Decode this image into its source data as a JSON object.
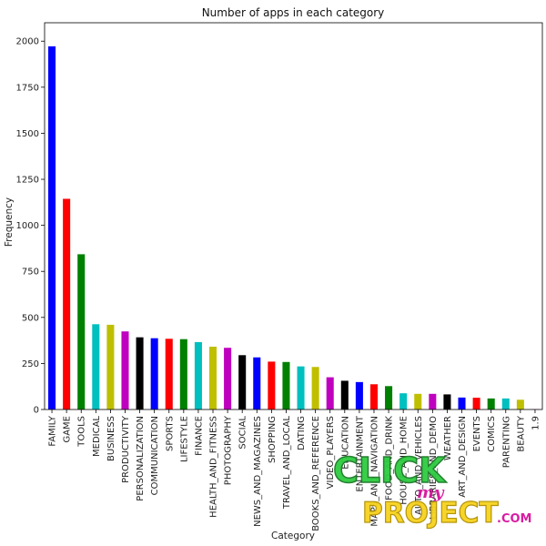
{
  "chart_data": {
    "type": "bar",
    "title": "Number of apps in each category",
    "xlabel": "Category",
    "ylabel": "Frequency",
    "ylim": [
      0,
      2100
    ],
    "yticks": [
      0,
      250,
      500,
      750,
      1000,
      1250,
      1500,
      1750,
      2000
    ],
    "grid": false,
    "legend": "none",
    "categories": [
      "FAMILY",
      "GAME",
      "TOOLS",
      "MEDICAL",
      "BUSINESS",
      "PRODUCTIVITY",
      "PERSONALIZATION",
      "COMMUNICATION",
      "SPORTS",
      "LIFESTYLE",
      "FINANCE",
      "HEALTH_AND_FITNESS",
      "PHOTOGRAPHY",
      "SOCIAL",
      "NEWS_AND_MAGAZINES",
      "SHOPPING",
      "TRAVEL_AND_LOCAL",
      "DATING",
      "BOOKS_AND_REFERENCE",
      "VIDEO_PLAYERS",
      "EDUCATION",
      "ENTERTAINMENT",
      "MAPS_AND_NAVIGATION",
      "FOOD_AND_DRINK",
      "HOUSE_AND_HOME",
      "AUTO_AND_VEHICLES",
      "LIBRARIES_AND_DEMO",
      "WEATHER",
      "ART_AND_DESIGN",
      "EVENTS",
      "COMICS",
      "PARENTING",
      "BEAUTY",
      "1.9"
    ],
    "values": [
      1972,
      1144,
      843,
      463,
      460,
      424,
      392,
      387,
      384,
      382,
      366,
      341,
      335,
      295,
      283,
      260,
      258,
      234,
      231,
      175,
      156,
      149,
      137,
      127,
      88,
      85,
      85,
      82,
      65,
      64,
      60,
      60,
      53,
      1
    ],
    "bar_colors": [
      "#0000ff",
      "#ff0000",
      "#008000",
      "#00bfbf",
      "#bfbf00",
      "#bf00bf",
      "#000000"
    ]
  },
  "watermark": {
    "line1": "CLICK",
    "line2": "my",
    "line3": "PROJECT",
    "suffix": ".COM",
    "colors": {
      "green": "#2ecc40",
      "yellow": "#f7d21e",
      "magenta": "#d6119c"
    }
  }
}
